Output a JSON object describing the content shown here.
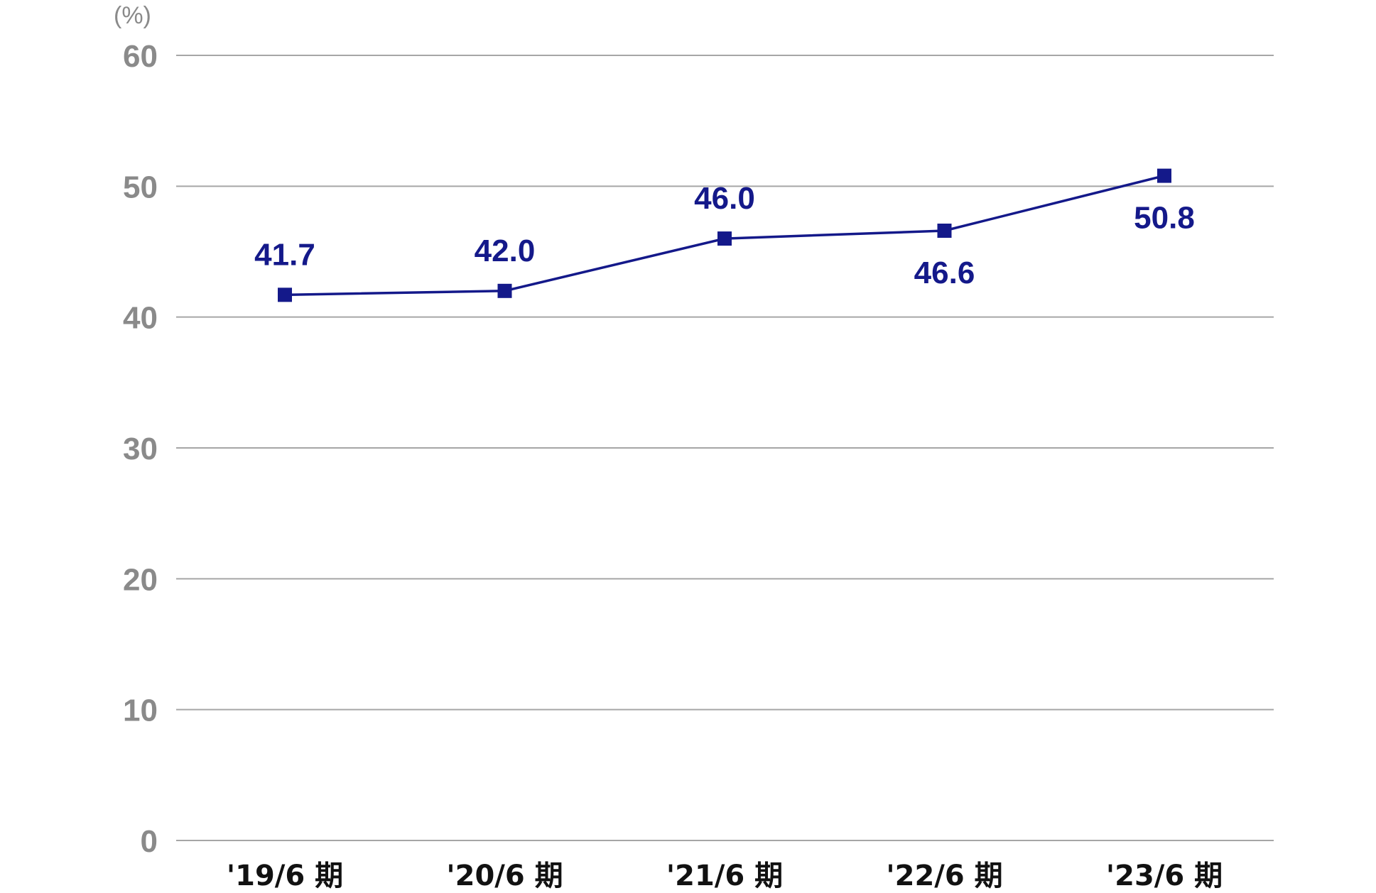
{
  "chart_data": {
    "type": "line",
    "unit_label": "(%)",
    "categories": [
      "'19/6 期",
      "'20/6 期",
      "'21/6 期",
      "'22/6 期",
      "'23/6 期"
    ],
    "series": [
      {
        "values": [
          41.7,
          42.0,
          46.0,
          46.6,
          50.8
        ],
        "color": "#14198a"
      }
    ],
    "data_labels": [
      "41.7",
      "42.0",
      "46.0",
      "46.6",
      "50.8"
    ],
    "data_label_placement": [
      "above",
      "above",
      "above",
      "below",
      "below"
    ],
    "ylim": [
      0,
      60
    ],
    "yticks": [
      0,
      10,
      20,
      30,
      40,
      50,
      60
    ],
    "grid": true,
    "grid_color": "#a6a6a6",
    "axis_text_color": "#8a8a8a",
    "category_text_color": "#111111",
    "marker": "square"
  }
}
